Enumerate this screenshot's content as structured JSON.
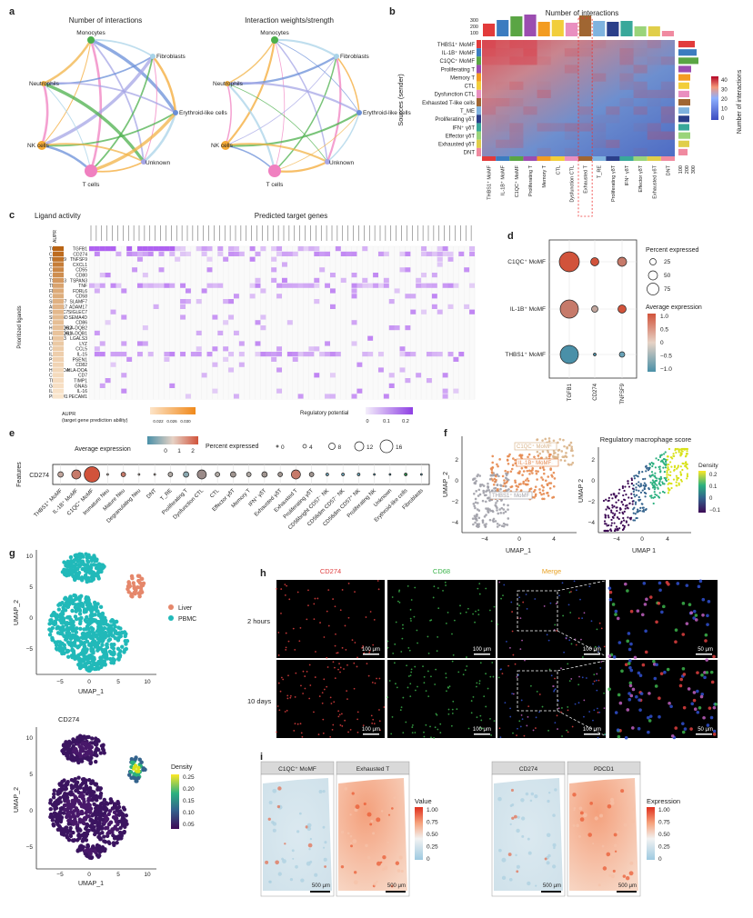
{
  "panel_a": {
    "letter": "a",
    "net1_title": "Number of interactions",
    "net2_title": "Interaction weights/strength",
    "nodes": [
      "Monocytes",
      "Fibroblasts",
      "Neutrophils",
      "Erythroid-like cells",
      "NK cells",
      "Unknown",
      "T cells"
    ]
  },
  "panel_b": {
    "letter": "b",
    "title": "Number of interactions",
    "y_title": "Sources (sender)",
    "legend_title": "Number of interactions",
    "top_ticks": [
      "300",
      "200",
      "100"
    ],
    "right_ticks": [
      "100",
      "200",
      "300"
    ],
    "legend_ticks": [
      "40",
      "30",
      "20",
      "10",
      "0"
    ],
    "rows": [
      "THBS1⁺ MoMF",
      "IL-1B⁺ MoMF",
      "C1QC⁺ MoMF",
      "Proliferating T",
      "Memory T",
      "CTL",
      "Dysfunction CTL",
      "Exhausted T-like cells",
      "T_ME",
      "Proliferating γδT",
      "IFN⁺ γδT",
      "Effector γδT",
      "Exhausted γδT",
      "DNT"
    ],
    "cols": [
      "THBS1⁺ MoMF",
      "IL-1B⁺ MoMF",
      "C1QC⁺ MoMF",
      "Proliferating T",
      "Memory T",
      "CTL",
      "Dysfunction CTL",
      "Exhausted T",
      "T_RE",
      "Proliferating γδT",
      "IFN⁺ γδT",
      "Effector γδT",
      "Exhausted γδT",
      "DNT"
    ],
    "group_colors": [
      "#e23b3b",
      "#3c7cc0",
      "#5aa544",
      "#9b4db0",
      "#f39c21",
      "#f2ce3a",
      "#e98fc0",
      "#a06632",
      "#7fb3df",
      "#2b3f8a",
      "#39a89a",
      "#9ad47a",
      "#e0ce4a",
      "#f08aa0"
    ]
  },
  "panel_c": {
    "letter": "c",
    "left_title": "Ligand activity",
    "right_title": "Predicted target genes",
    "aupr_header": "AUPR",
    "y_title": "Prioritized ligands",
    "ligands": [
      "TGFB1",
      "CD274",
      "TNFSF9",
      "CXCL1",
      "CD55",
      "CD80",
      "TSPAN3",
      "TNF",
      "FDRL6",
      "CD58",
      "SLAMF7",
      "ADAM17",
      "SIGLEC7",
      "SEMA4D",
      "CD86",
      "HLA-DQB2",
      "HLA-DQB1",
      "LGALS3",
      "LYZ",
      "CCL5",
      "IL-15",
      "PSEN1",
      "CD82",
      "HLA-DOA",
      "CD7",
      "TIMP1",
      "GNAS",
      "IL-16",
      "PECAM1"
    ],
    "aupr_legend_title": "AUPR",
    "aupr_legend_sub": "(target gene prediction ability)",
    "aupr_ticks": [
      "0.022",
      "0.026",
      "0.030"
    ],
    "reg_legend_title": "Regulatory potential",
    "reg_ticks": [
      "0",
      "0.1",
      "0.2"
    ]
  },
  "panel_d": {
    "letter": "d",
    "rows": [
      "C1QC⁺ MoMF",
      "IL-1B⁺ MoMF",
      "THBS1⁺ MoMF"
    ],
    "cols": [
      "TGFB1",
      "CD274",
      "TNFSF9"
    ],
    "size_title": "Percent expressed",
    "size_ticks": [
      "25",
      "50",
      "75"
    ],
    "color_title": "Average expression",
    "color_ticks": [
      "1.0",
      "0.5",
      "0",
      "−0.5",
      "−1.0"
    ]
  },
  "panel_e": {
    "letter": "e",
    "color_title": "Average expression",
    "color_ticks": [
      "0",
      "1",
      "2"
    ],
    "size_title": "Percent expressed",
    "size_ticks": [
      "0",
      "4",
      "8",
      "12",
      "16"
    ],
    "y_title": "Features",
    "feature": "CD274",
    "cells": [
      "THBS1⁺ MoMF",
      "IL-1B⁺ MoMF",
      "C1QC⁺ MoMF",
      "Immature Neu",
      "Mature Neu",
      "Degranulating Neu",
      "DNT",
      "T_RE",
      "Proliferating T",
      "Dysfunction CTL",
      "CTL",
      "Effector γδT",
      "Memory T",
      "IFN⁺ γδT",
      "Exhausted γδT",
      "Exhausted T",
      "Proliferating γδT",
      "CD56bright CD57⁻ NK",
      "CD56dim CD57⁻ NK",
      "CD56dim CD57⁺ NK",
      "Proliferating NK",
      "Unknown",
      "Erythroid-like cells",
      "Fibroblasts"
    ]
  },
  "panel_f": {
    "letter": "f",
    "right_title": "Regulatory macrophage score",
    "x_label": "UMAP_1",
    "y_label": "UMAP_2",
    "x_label2": "UMAP 1",
    "y_label2": "UMAP 2",
    "x_ticks": [
      "−4",
      "0",
      "4"
    ],
    "y_ticks": [
      "2",
      "0",
      "−2",
      "−4"
    ],
    "cluster_labels": [
      "C1QC⁺ MoMF",
      "IL-1B⁺ MoMF",
      "THBS1⁺ MoMF"
    ],
    "density_title": "Density",
    "density_ticks": [
      "0.2",
      "0.1",
      "0",
      "−0.1"
    ]
  },
  "panel_g": {
    "letter": "g",
    "y_label": "UMAP_2",
    "x_label": "UMAP_1",
    "y_ticks": [
      "10",
      "5",
      "0",
      "−5"
    ],
    "x_ticks": [
      "−5",
      "0",
      "5",
      "10"
    ],
    "legend": [
      {
        "name": "Liver",
        "color": "#e5876b"
      },
      {
        "name": "PBMC",
        "color": "#21b9b9"
      }
    ],
    "bottom_title": "CD274",
    "bottom_y_label": "UMAP_2",
    "bottom_x_label": "UMAP_1",
    "bottom_y_ticks": [
      "10",
      "5",
      "0",
      "−5"
    ],
    "density_title": "Density",
    "density_ticks": [
      "0.25",
      "0.20",
      "0.15",
      "0.10",
      "0.05"
    ]
  },
  "panel_h": {
    "letter": "h",
    "channels": [
      {
        "name": "CD274",
        "color": "#e04040"
      },
      {
        "name": "CD68",
        "color": "#3cb44b"
      },
      {
        "name": "Merge",
        "color": "#e8a020"
      }
    ],
    "rows": [
      "2 hours",
      "10 days"
    ],
    "scale_100": "100 μm",
    "scale_50": "50 μm"
  },
  "panel_i": {
    "letter": "i",
    "tiles": [
      "C1QC⁺ MoMF",
      "Exhausted T",
      "CD274",
      "PDCD1"
    ],
    "value_title": "Value",
    "expr_title": "Expression",
    "ticks": [
      "1.00",
      "0.75",
      "0.50",
      "0.25",
      "0"
    ],
    "scale": "500 μm"
  }
}
